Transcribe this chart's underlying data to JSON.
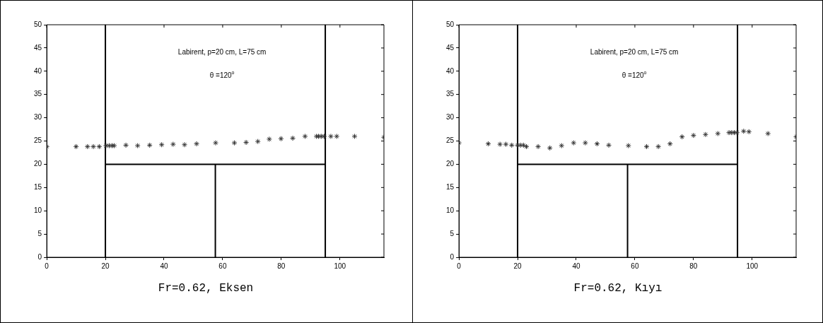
{
  "chart_data": [
    {
      "type": "scatter",
      "xlabel": "Fr=0.62, Eksen",
      "annotations": [
        "Labirent, p=20 cm, L=75 cm",
        "θ =120$^{o}$"
      ],
      "xlim": [
        0,
        115
      ],
      "ylim": [
        0,
        50
      ],
      "xticks": [
        0,
        20,
        40,
        60,
        80,
        100
      ],
      "yticks": [
        0,
        5,
        10,
        15,
        20,
        25,
        30,
        35,
        40,
        45,
        50
      ],
      "grid": false,
      "legend": false,
      "line_style": "solid",
      "series": [
        {
          "marker": "cross",
          "color": "#333333",
          "x": [
            0,
            10,
            13.9,
            15.9,
            17.9,
            20.2,
            21.3,
            22.3,
            23,
            27,
            31,
            35.1,
            39.2,
            43.1,
            47,
            51.1,
            57.6,
            64,
            68,
            72,
            75.9,
            79.9,
            83.9,
            88.1,
            92,
            92.7,
            93.6,
            94.6,
            96.9,
            98.9,
            105,
            115
          ],
          "values": [
            23.8,
            23.8,
            23.8,
            23.8,
            23.8,
            24,
            24,
            24,
            24,
            24.1,
            24,
            24.1,
            24.2,
            24.3,
            24.2,
            24.4,
            24.6,
            24.6,
            24.7,
            24.9,
            25.4,
            25.5,
            25.6,
            26,
            26,
            26,
            26,
            26,
            26,
            26,
            26,
            25.8
          ]
        },
        {
          "type": "line",
          "color": "#000000",
          "x": [
            20,
            20
          ],
          "values": [
            0,
            50
          ]
        },
        {
          "type": "line",
          "color": "#000000",
          "x": [
            95,
            95
          ],
          "values": [
            0,
            50
          ]
        },
        {
          "type": "line",
          "color": "#000000",
          "x": [
            20,
            95
          ],
          "values": [
            20,
            20
          ]
        },
        {
          "type": "line",
          "color": "#000000",
          "x": [
            57.5,
            57.5
          ],
          "values": [
            0,
            20
          ]
        }
      ]
    },
    {
      "type": "scatter",
      "xlabel": "Fr=0.62, Kıyı",
      "annotations": [
        "Labirent, p=20 cm, L=75 cm",
        "θ =120$^{o}$"
      ],
      "xlim": [
        0,
        115
      ],
      "ylim": [
        0,
        50
      ],
      "xticks": [
        0,
        20,
        40,
        60,
        80,
        100
      ],
      "yticks": [
        0,
        5,
        10,
        15,
        20,
        25,
        30,
        35,
        40,
        45,
        50
      ],
      "grid": false,
      "legend": false,
      "line_style": "solid",
      "series": [
        {
          "marker": "cross",
          "color": "#333333",
          "x": [
            0,
            10,
            14,
            16,
            18,
            20,
            21,
            22,
            23,
            27,
            31,
            35,
            39.1,
            43.1,
            47.1,
            51.1,
            57.8,
            64,
            68,
            72,
            76.1,
            80,
            84.1,
            88.3,
            92.1,
            93,
            93.9,
            94.8,
            97.1,
            98.9,
            105.4,
            115
          ],
          "values": [
            24.6,
            24.4,
            24.3,
            24.3,
            24.1,
            24.1,
            24.1,
            24.1,
            23.8,
            23.8,
            23.5,
            24,
            24.6,
            24.6,
            24.4,
            24.1,
            24,
            23.8,
            23.8,
            24.4,
            25.9,
            26.2,
            26.4,
            26.6,
            26.8,
            26.8,
            26.8,
            26.8,
            27.1,
            27,
            26.6,
            25.9
          ]
        },
        {
          "type": "line",
          "color": "#000000",
          "x": [
            20,
            20
          ],
          "values": [
            0,
            50
          ]
        },
        {
          "type": "line",
          "color": "#000000",
          "x": [
            95,
            95
          ],
          "values": [
            0,
            50
          ]
        },
        {
          "type": "line",
          "color": "#000000",
          "x": [
            20,
            95
          ],
          "values": [
            20,
            20
          ]
        },
        {
          "type": "line",
          "color": "#000000",
          "x": [
            57.5,
            57.5
          ],
          "values": [
            0,
            20
          ]
        }
      ]
    }
  ]
}
